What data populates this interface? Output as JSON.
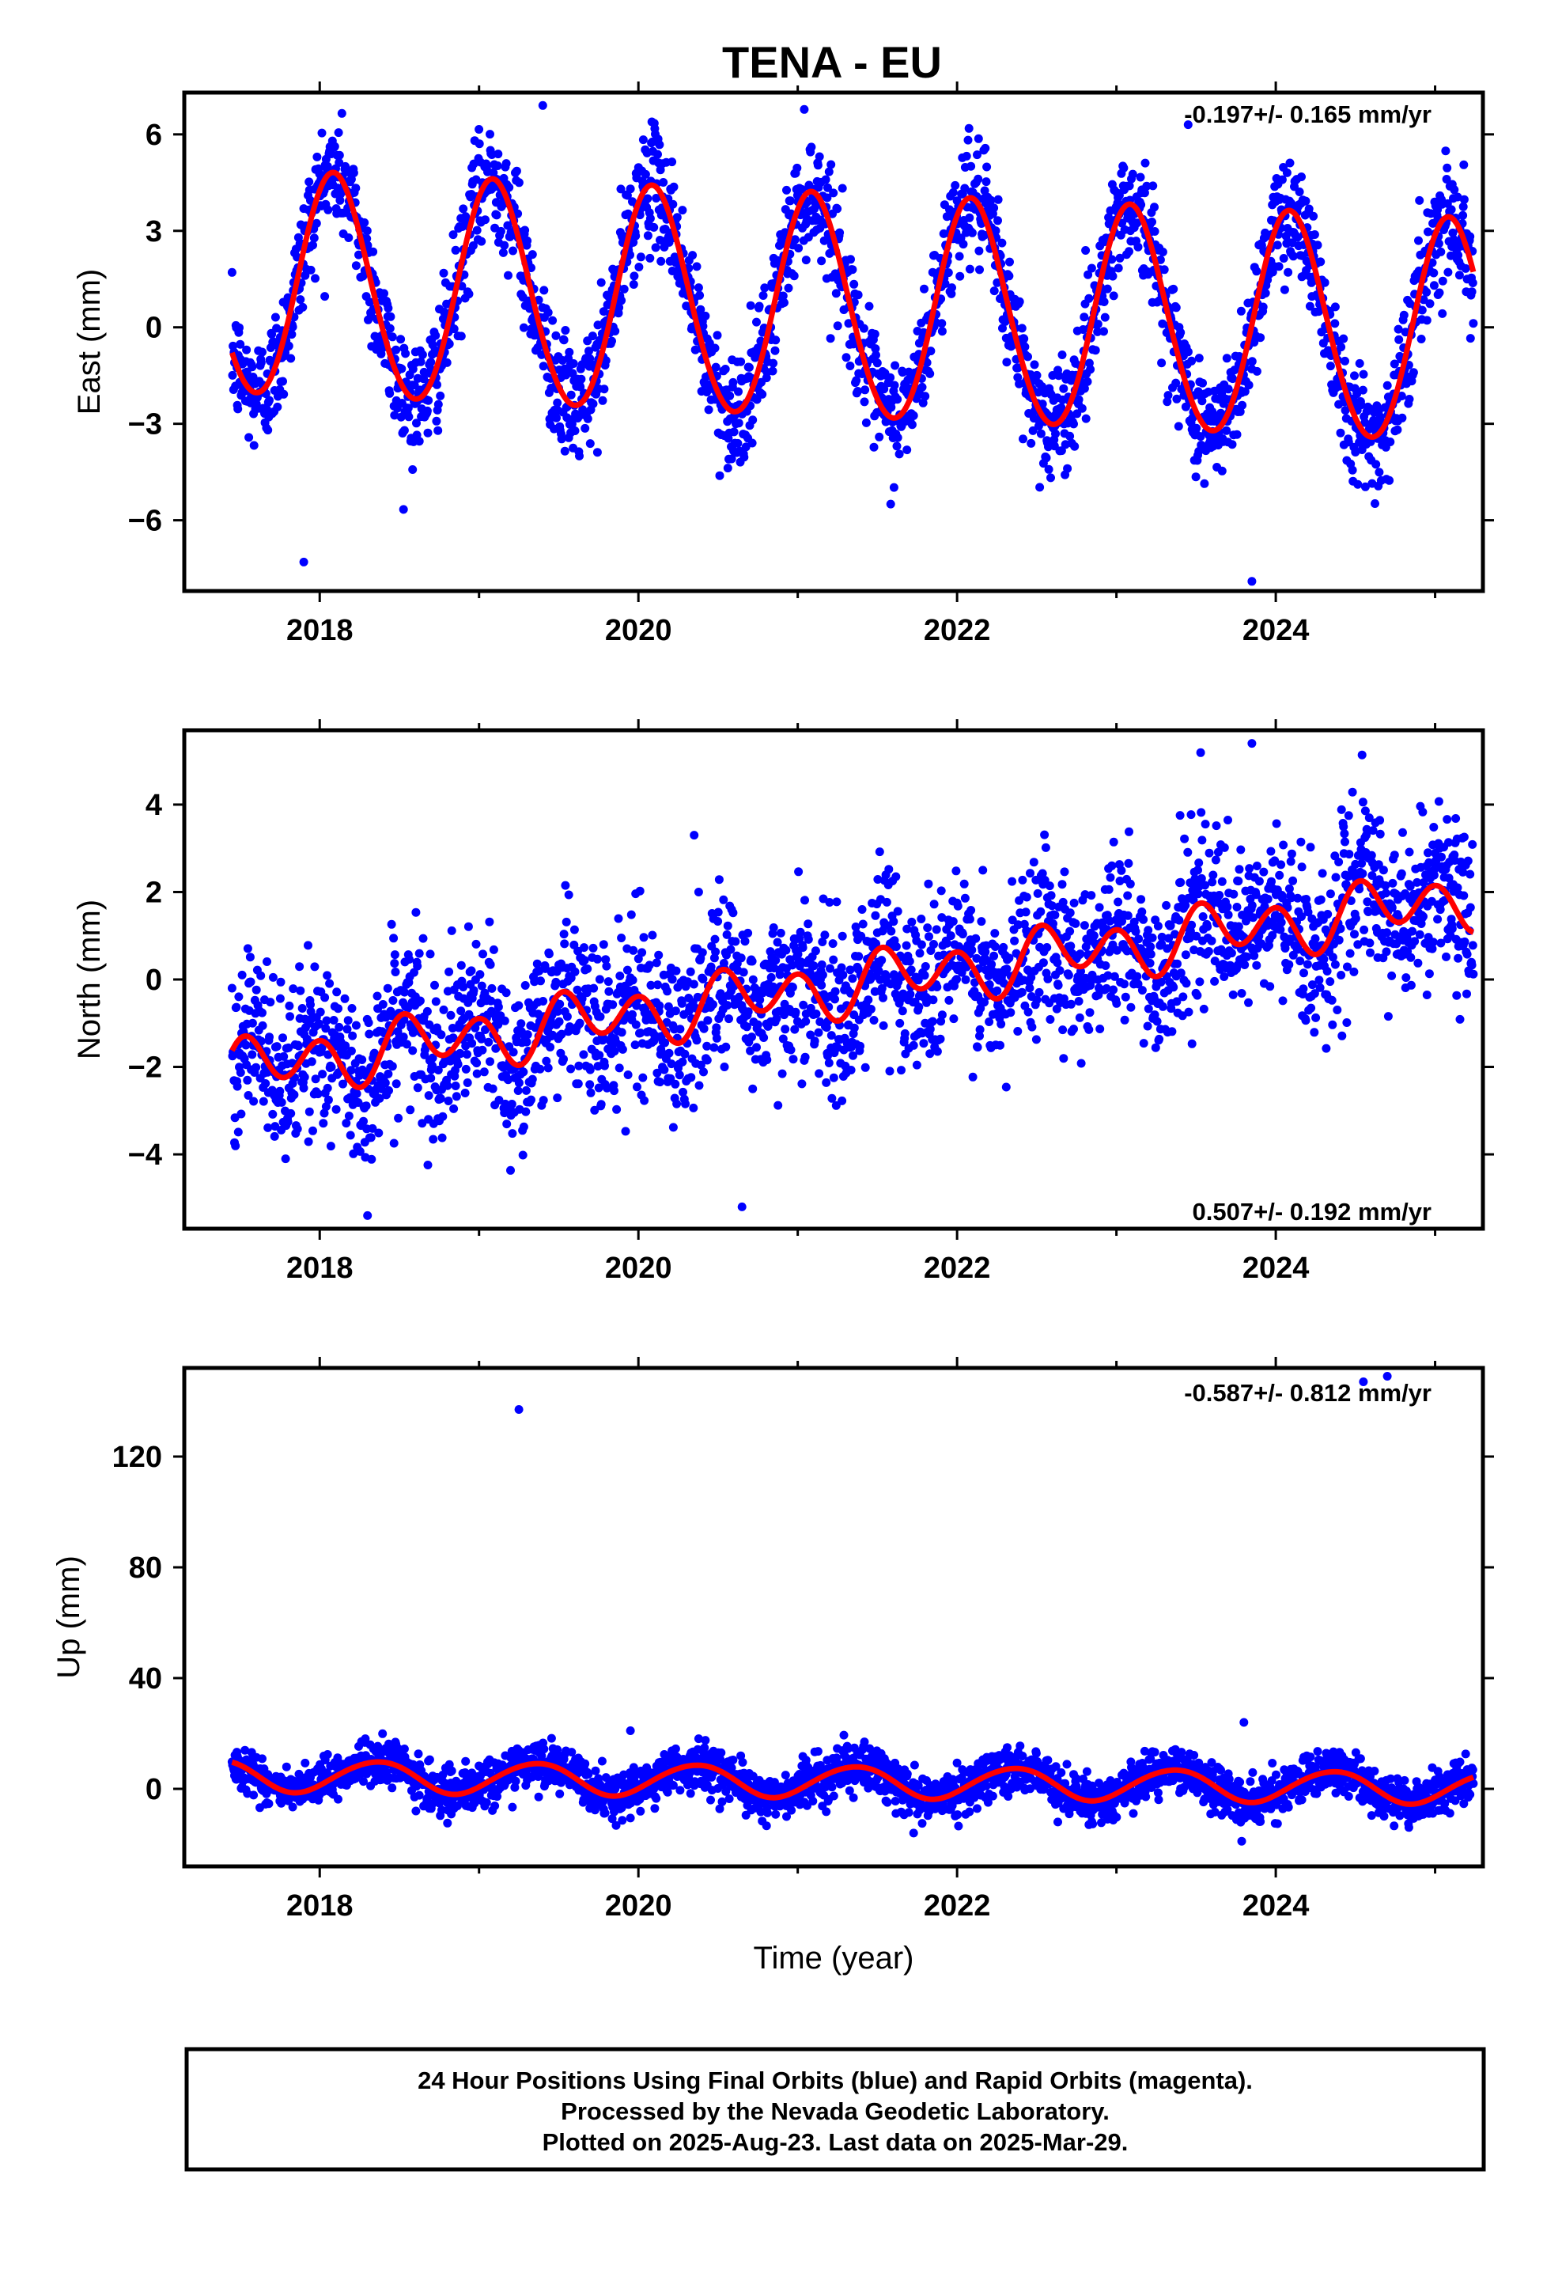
{
  "title": "TENA - EU",
  "footer": {
    "lines": [
      "24 Hour Positions Using Final Orbits (blue) and Rapid Orbits (magenta).",
      "Processed by the Nevada Geodetic Laboratory.",
      "Plotted on 2025-Aug-23. Last data on 2025-Mar-29."
    ]
  },
  "colors": {
    "final_orbits": "#0000ff",
    "fit": "#ff0000",
    "frame": "#000000"
  },
  "chart_data": [
    {
      "type": "scatter",
      "name": "east",
      "ylabel": "East (mm)",
      "xlabel": "",
      "rate_label": "-0.197+/- 0.165 mm/yr",
      "rate_position": "top-right",
      "xlim": [
        2017.15,
        2025.3
      ],
      "ylim": [
        -8.2,
        7.3
      ],
      "xticks": [
        2018,
        2020,
        2022,
        2024
      ],
      "yticks": [
        -6,
        -3,
        0,
        3,
        6
      ],
      "ytick_labels": [
        "−6",
        "−3",
        "0",
        "3",
        "6"
      ],
      "data_range": [
        2017.45,
        2025.24
      ],
      "model": {
        "offset": 0.55,
        "trend": -0.197,
        "annual_cos": 2.9,
        "annual_sin": 1.9,
        "semi_cos": 0.15,
        "semi_sin": 0.1
      },
      "scatter_sd": 0.9,
      "point_count": 2600,
      "outliers": [
        [
          2017.9,
          -7.3
        ],
        [
          2019.4,
          6.9
        ],
        [
          2023.85,
          -7.9
        ],
        [
          2023.45,
          6.3
        ]
      ]
    },
    {
      "type": "scatter",
      "name": "north",
      "ylabel": "North (mm)",
      "xlabel": "",
      "rate_label": "0.507+/- 0.192 mm/yr",
      "rate_position": "bottom-right",
      "xlim": [
        2017.15,
        2025.3
      ],
      "ylim": [
        -5.7,
        5.7
      ],
      "xticks": [
        2018,
        2020,
        2022,
        2024
      ],
      "yticks": [
        -4,
        -2,
        0,
        2,
        4
      ],
      "ytick_labels": [
        "−4",
        "−2",
        "0",
        "2",
        "4"
      ],
      "data_range": [
        2017.45,
        2025.24
      ],
      "model": {
        "offset": -0.1,
        "trend": 0.507,
        "annual_cos": -0.15,
        "annual_sin": -0.25,
        "semi_cos": 0.55,
        "semi_sin": 0.1
      },
      "scatter_sd": 0.95,
      "point_count": 2600,
      "outliers": [
        [
          2018.3,
          -5.4
        ],
        [
          2020.65,
          -5.2
        ],
        [
          2023.85,
          5.4
        ],
        [
          2020.35,
          3.3
        ]
      ]
    },
    {
      "type": "scatter",
      "name": "up",
      "ylabel": "Up (mm)",
      "xlabel": "Time (year)",
      "rate_label": "-0.587+/- 0.812 mm/yr",
      "rate_position": "top-right",
      "xlim": [
        2017.15,
        2025.3
      ],
      "ylim": [
        -28,
        152
      ],
      "xticks": [
        2018,
        2020,
        2022,
        2024
      ],
      "yticks": [
        0,
        40,
        80,
        120
      ],
      "ytick_labels": [
        "0",
        "40",
        "80",
        "120"
      ],
      "data_range": [
        2017.45,
        2025.24
      ],
      "model": {
        "offset": 2.5,
        "trend": -0.587,
        "annual_cos": -3.5,
        "annual_sin": 4.5,
        "semi_cos": 0.3,
        "semi_sin": 0.2
      },
      "scatter_sd": 4.0,
      "point_count": 2600,
      "outliers": [
        [
          2019.25,
          137
        ],
        [
          2024.55,
          147
        ],
        [
          2024.7,
          149
        ],
        [
          2023.8,
          24
        ],
        [
          2019.95,
          21
        ]
      ]
    }
  ]
}
